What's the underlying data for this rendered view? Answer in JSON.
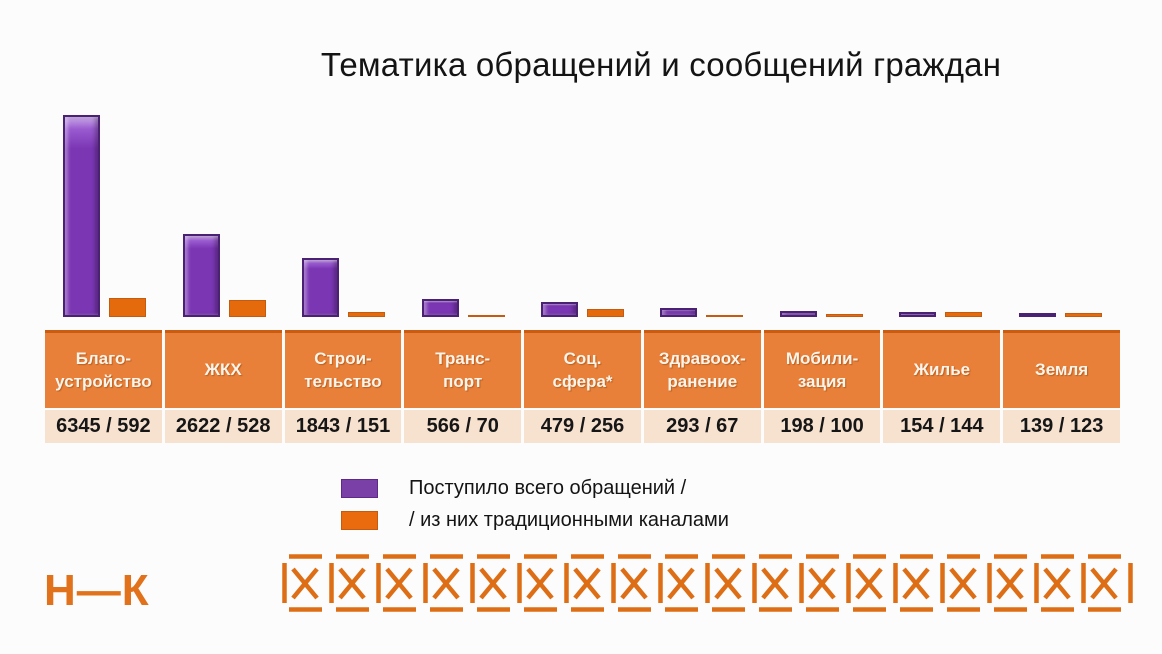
{
  "title": "Тематика обращений и сообщений граждан",
  "chart_data": {
    "type": "bar",
    "title": "Тематика обращений и сообщений граждан",
    "categories": [
      "Благо-устройство",
      "ЖКХ",
      "Строи-тельство",
      "Транс-порт",
      "Соц. сфера*",
      "Здравоох-ранение",
      "Мобили-зация",
      "Жилье",
      "Земля"
    ],
    "series": [
      {
        "name": "Поступило всего обращений /",
        "color": "#7b36b4",
        "values": [
          6345,
          2622,
          1843,
          566,
          479,
          293,
          198,
          154,
          139
        ]
      },
      {
        "name": "/ из них традиционными каналами",
        "color": "#e56a0c",
        "values": [
          592,
          528,
          151,
          70,
          256,
          67,
          100,
          144,
          123
        ]
      }
    ],
    "ylim": [
      0,
      6345
    ],
    "xlabel": "",
    "ylabel": "",
    "grid": false,
    "legend_position": "bottom-left"
  },
  "table": {
    "headers": [
      [
        "Благо-",
        "устройство"
      ],
      [
        "ЖКХ"
      ],
      [
        "Строи-",
        "тельство"
      ],
      [
        "Транс-",
        "порт"
      ],
      [
        "Соц.",
        "сфера*"
      ],
      [
        "Здравоох-",
        "ранение"
      ],
      [
        "Мобили-",
        "зация"
      ],
      [
        "Жилье"
      ],
      [
        "Земля"
      ]
    ],
    "values": [
      "6345 / 592",
      "2622 / 528",
      "1843 / 151",
      "566 / 70",
      "479 / 256",
      "293 / 67",
      "198 / 100",
      "154 / 144",
      "139 / 123"
    ]
  },
  "legend": {
    "items": [
      {
        "label": "Поступило всего обращений /",
        "color": "#7b3fa8"
      },
      {
        "label": "/ из них традиционными каналами",
        "color": "#e96b0e"
      }
    ]
  },
  "footer": {
    "logo": "Н—К",
    "pattern_count": 18
  },
  "colors": {
    "accent_orange": "#dd6e15",
    "bar_purple": "#7b36b4",
    "bar_orange": "#e56a0c",
    "table_header_orange": "#e8803a",
    "table_row_peach": "#f7e2d0"
  }
}
